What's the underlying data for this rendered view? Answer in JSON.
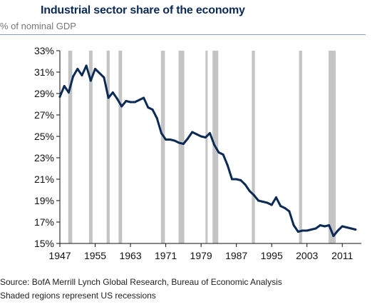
{
  "chart_data": {
    "type": "line",
    "title": "Industrial sector share of the economy",
    "subtitle": "% of nominal GDP",
    "xlabel": "",
    "ylabel": "",
    "xlim": [
      1947,
      2015
    ],
    "ylim": [
      15,
      33
    ],
    "xticks": [
      1947,
      1955,
      1963,
      1971,
      1979,
      1987,
      1995,
      2003,
      2011
    ],
    "yticks": [
      15,
      17,
      19,
      21,
      23,
      25,
      27,
      29,
      31,
      33
    ],
    "ytick_labels": [
      "15%",
      "17%",
      "19%",
      "21%",
      "23%",
      "25%",
      "27%",
      "29%",
      "31%",
      "33%"
    ],
    "grid": false,
    "legend": "none",
    "line_color": "#0b2a55",
    "shade_color": "#c4c4c4",
    "series": [
      {
        "x": [
          1947,
          1948,
          1949,
          1950,
          1951,
          1952,
          1953,
          1954,
          1955,
          1956,
          1957,
          1958,
          1959,
          1960,
          1961,
          1962,
          1963,
          1964,
          1965,
          1966,
          1967,
          1968,
          1969,
          1970,
          1971,
          1972,
          1973,
          1974,
          1975,
          1976,
          1977,
          1978,
          1979,
          1980,
          1981,
          1982,
          1983,
          1984,
          1985,
          1986,
          1987,
          1988,
          1989,
          1990,
          1991,
          1992,
          1993,
          1994,
          1995,
          1996,
          1997,
          1998,
          1999,
          2000,
          2001,
          2002,
          2003,
          2004,
          2005,
          2006,
          2007,
          2008,
          2009,
          2010,
          2011,
          2012,
          2013,
          2014
        ],
        "values": [
          28.7,
          29.7,
          29.1,
          30.6,
          31.3,
          30.7,
          31.6,
          30.2,
          31.3,
          30.9,
          30.5,
          28.6,
          29.1,
          28.5,
          27.8,
          28.3,
          28.2,
          28.2,
          28.4,
          28.6,
          27.7,
          27.5,
          26.7,
          25.3,
          24.7,
          24.7,
          24.6,
          24.4,
          24.3,
          24.8,
          25.4,
          25.2,
          25.0,
          24.9,
          25.3,
          24.2,
          23.5,
          23.3,
          22.3,
          21.0,
          21.0,
          20.9,
          20.5,
          19.9,
          19.5,
          19.0,
          18.9,
          18.8,
          18.6,
          19.3,
          18.5,
          18.3,
          18.0,
          16.7,
          16.1,
          16.2,
          16.2,
          16.3,
          16.4,
          16.7,
          16.6,
          16.7,
          15.7,
          16.2,
          16.6,
          16.5,
          16.4,
          16.3
        ]
      }
    ],
    "recessions": [
      [
        1948.9,
        1949.8
      ],
      [
        1953.6,
        1954.4
      ],
      [
        1957.6,
        1958.3
      ],
      [
        1960.3,
        1961.1
      ],
      [
        1969.9,
        1970.8
      ],
      [
        1973.9,
        1975.2
      ],
      [
        1980.0,
        1980.5
      ],
      [
        1981.6,
        1982.9
      ],
      [
        1990.5,
        1991.2
      ],
      [
        2001.2,
        2001.9
      ],
      [
        2007.9,
        2009.5
      ]
    ]
  },
  "notes": {
    "source": "Source: BofA Merrill Lynch Global Research, Bureau of Economic Analysis",
    "shading": "Shaded regions represent US recessions"
  }
}
